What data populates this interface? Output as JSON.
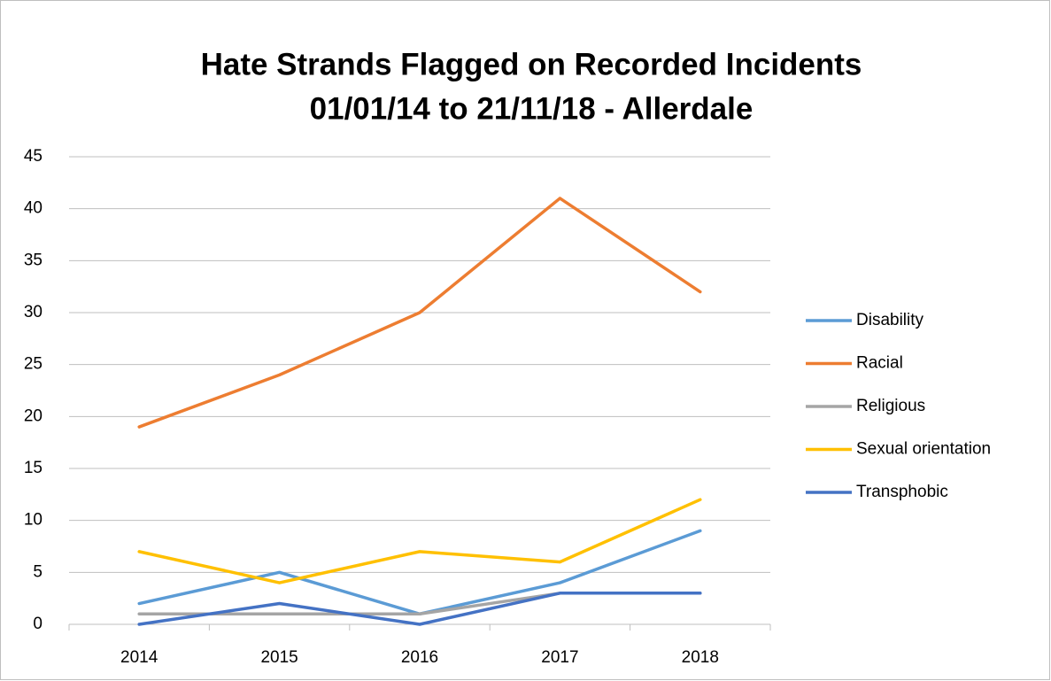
{
  "chart_data": {
    "type": "line",
    "title": [
      "Hate Strands Flagged on Recorded Incidents",
      "01/01/14 to 21/11/18 - Allerdale"
    ],
    "categories": [
      "2014",
      "2015",
      "2016",
      "2017",
      "2018"
    ],
    "series": [
      {
        "name": "Disability",
        "color": "#5b9bd5",
        "values": [
          2,
          5,
          1,
          4,
          9
        ]
      },
      {
        "name": "Racial",
        "color": "#ed7d31",
        "values": [
          19,
          24,
          30,
          41,
          32
        ]
      },
      {
        "name": "Religious",
        "color": "#a5a5a5",
        "values": [
          1,
          1,
          1,
          3,
          3
        ]
      },
      {
        "name": "Sexual orientation",
        "color": "#ffc000",
        "values": [
          7,
          4,
          7,
          6,
          12
        ]
      },
      {
        "name": "Transphobic",
        "color": "#4472c4",
        "values": [
          0,
          2,
          0,
          3,
          3
        ]
      }
    ],
    "ylim": [
      0,
      45
    ],
    "yticks": [
      0,
      5,
      10,
      15,
      20,
      25,
      30,
      35,
      40,
      45
    ],
    "grid": true,
    "legend": "right"
  }
}
